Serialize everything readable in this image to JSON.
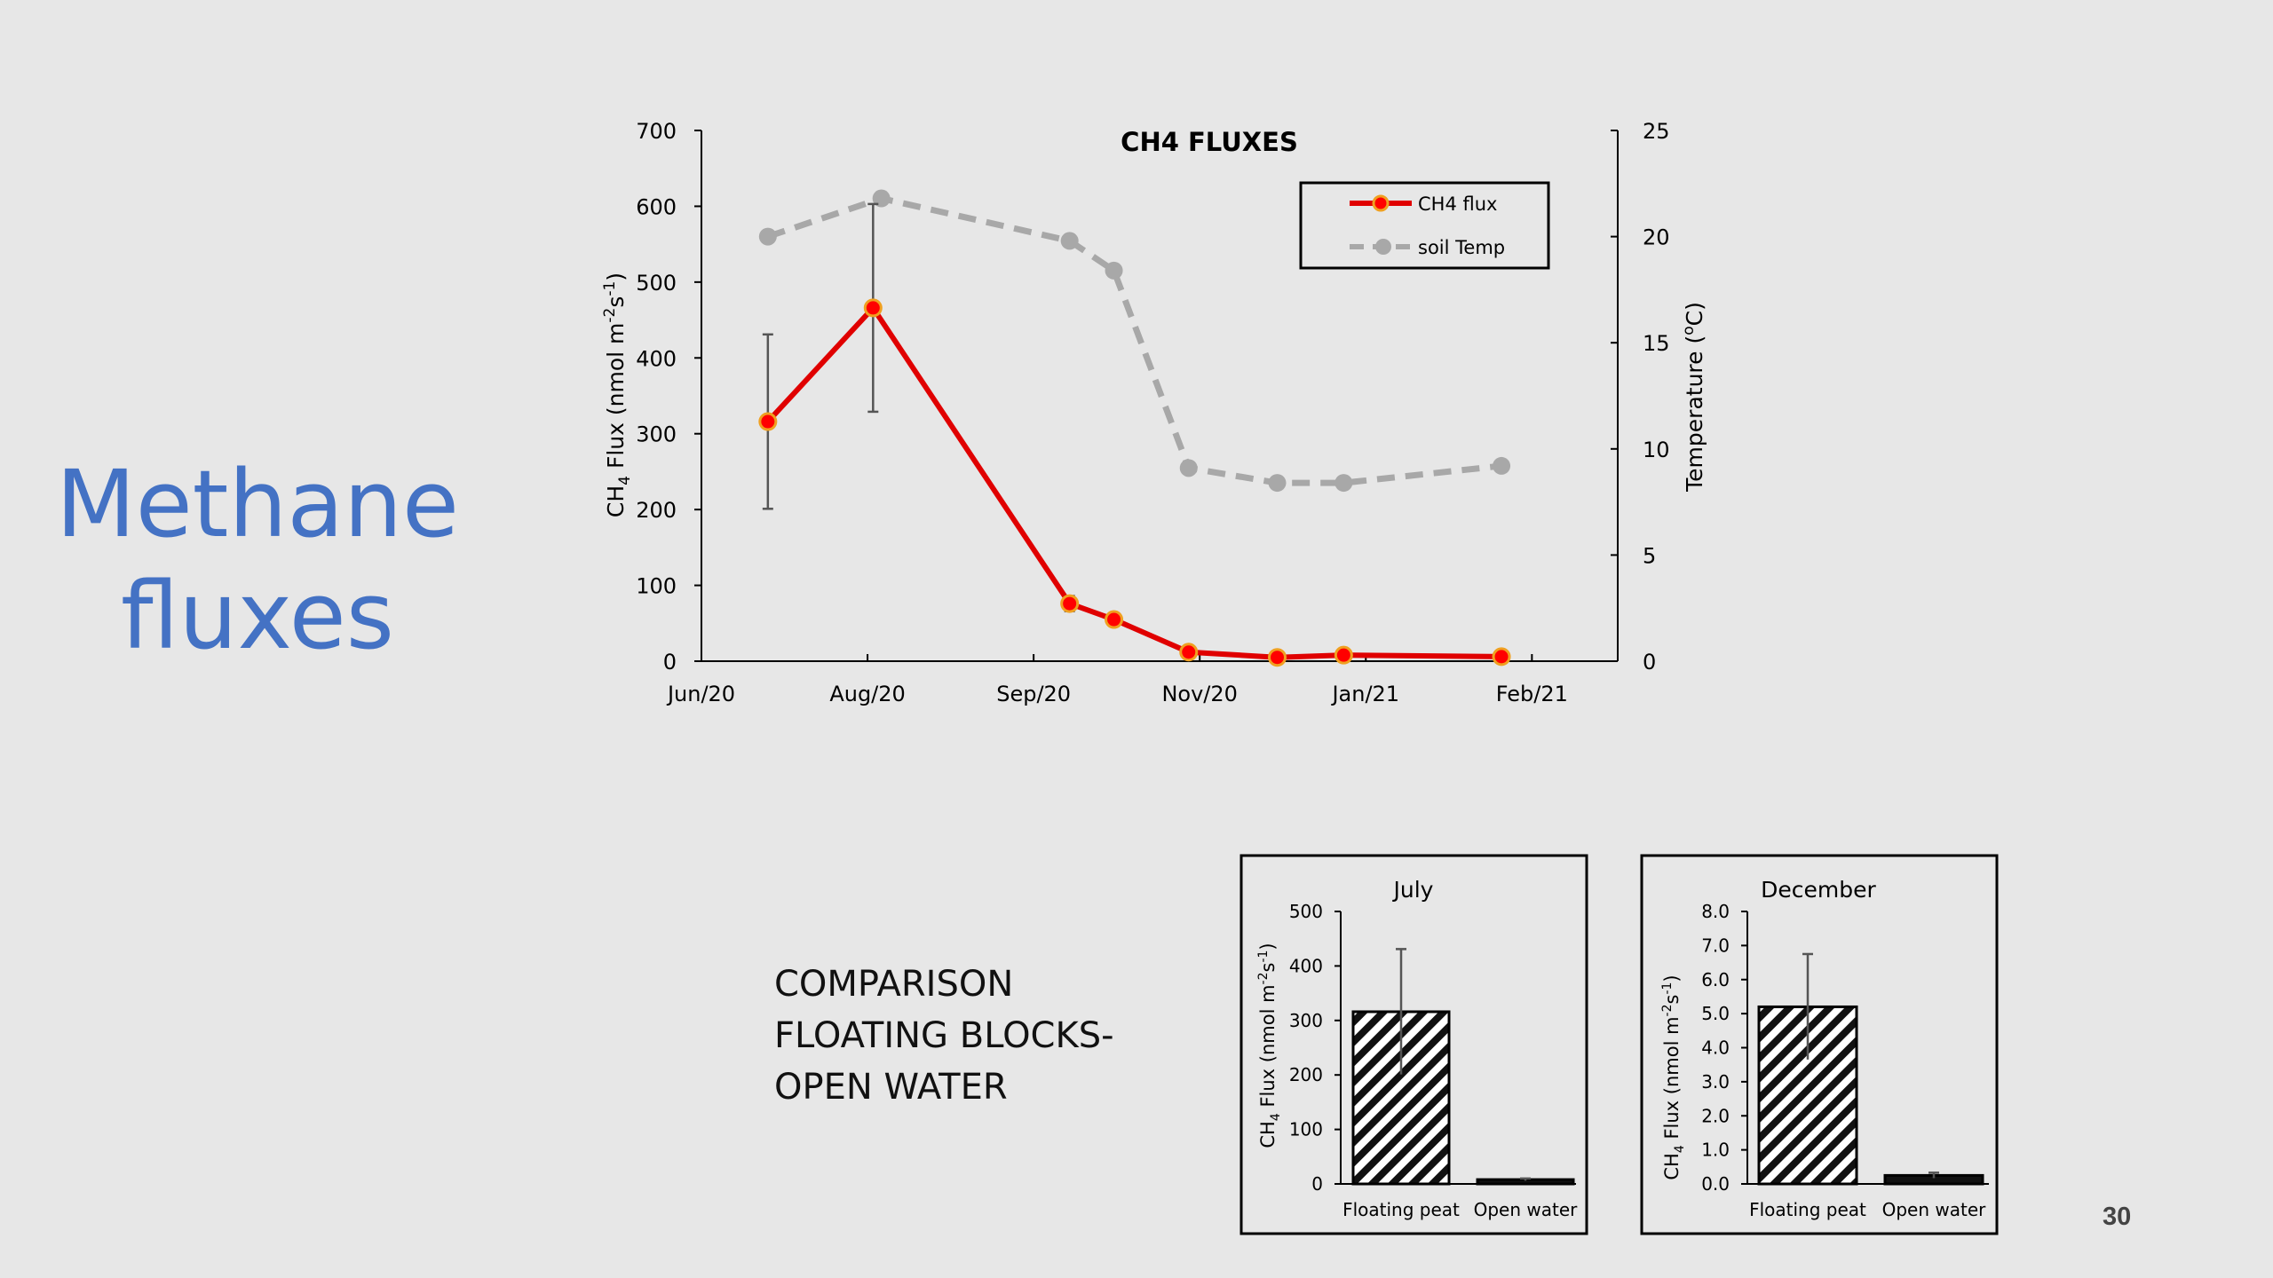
{
  "slide": {
    "title_lines": [
      "Methane",
      "fluxes"
    ],
    "comparison_lines": [
      "COMPARISON",
      "FLOATING BLOCKS-",
      "OPEN WATER"
    ],
    "page_number": "30"
  },
  "colors": {
    "title": "#4472c4",
    "ch4_line": "#e00000",
    "ch4_marker_fill": "#ff0000",
    "ch4_marker_edge": "#f0a020",
    "soil_temp": "#a8a8a8",
    "background": "#e7e7e7"
  },
  "chart_data": [
    {
      "type": "line",
      "title": "CH4 FLUXES",
      "ylabel": "CH4 Flux (nmol m-2s-1)",
      "ylabel_parts": {
        "a": "CH",
        "b": "4",
        "c": " Flux (nmol m",
        "d": "-2",
        "e": "s",
        "f": "-1",
        "g": ")"
      },
      "y2label": "Temperature (oC)",
      "y2label_parts": {
        "a": "Temperature (",
        "b": "o",
        "c": "C)"
      },
      "ylim": [
        0,
        700
      ],
      "y_ticks": [
        "0",
        "100",
        "200",
        "300",
        "400",
        "500",
        "600",
        "700"
      ],
      "y2lim": [
        0,
        25
      ],
      "y2_ticks": [
        "0",
        "5",
        "10",
        "15",
        "20",
        "25"
      ],
      "x_ticks": [
        "Jun/20",
        "Aug/20",
        "Sep/20",
        "Nov/20",
        "Jan/21",
        "Feb/21"
      ],
      "x_tick_dates": [
        "2020-06-01",
        "2020-07-31",
        "2020-09-29",
        "2020-11-28",
        "2021-01-27",
        "2021-03-28"
      ],
      "x_range_dates": [
        "2020-06-01",
        "2021-04-28"
      ],
      "legend_position": "top-right",
      "legend": [
        "CH4 flux",
        "soil Temp"
      ],
      "series": [
        {
          "name": "CH4 flux",
          "axis": "left",
          "style": "solid-line-circle-markers",
          "x": [
            "2020-06-25",
            "2020-08-02",
            "2020-10-12",
            "2020-10-28",
            "2020-11-24",
            "2020-12-26",
            "2021-01-19",
            "2021-03-17"
          ],
          "y": [
            316,
            466,
            76,
            55,
            12,
            5,
            8,
            6
          ],
          "error": [
            115,
            137,
            10,
            8,
            3,
            0,
            0,
            0
          ]
        },
        {
          "name": "soil Temp",
          "axis": "right",
          "style": "dashed-line-circle-markers",
          "x": [
            "2020-06-25",
            "2020-08-05",
            "2020-10-12",
            "2020-10-28",
            "2020-11-24",
            "2020-12-26",
            "2021-01-19",
            "2021-03-17"
          ],
          "y": [
            20.0,
            21.8,
            19.8,
            18.4,
            9.1,
            8.4,
            8.4,
            9.2
          ]
        }
      ]
    },
    {
      "type": "bar",
      "title": "July",
      "ylabel": "CH4 Flux (nmol m-2s-1)",
      "ylim": [
        0,
        500
      ],
      "y_ticks": [
        "0",
        "100",
        "200",
        "300",
        "400",
        "500"
      ],
      "categories": [
        "Floating peat",
        "Open water"
      ],
      "values": [
        316,
        8
      ],
      "error": [
        115,
        2
      ]
    },
    {
      "type": "bar",
      "title": "December",
      "ylabel": "CH4 Flux (nmol m-2s-1)",
      "ylim": [
        0,
        8
      ],
      "y_ticks": [
        "0.0",
        "1.0",
        "2.0",
        "3.0",
        "4.0",
        "5.0",
        "6.0",
        "7.0",
        "8.0"
      ],
      "categories": [
        "Floating peat",
        "Open water"
      ],
      "values": [
        5.2,
        0.25
      ],
      "error": [
        1.55,
        0.08
      ]
    }
  ]
}
